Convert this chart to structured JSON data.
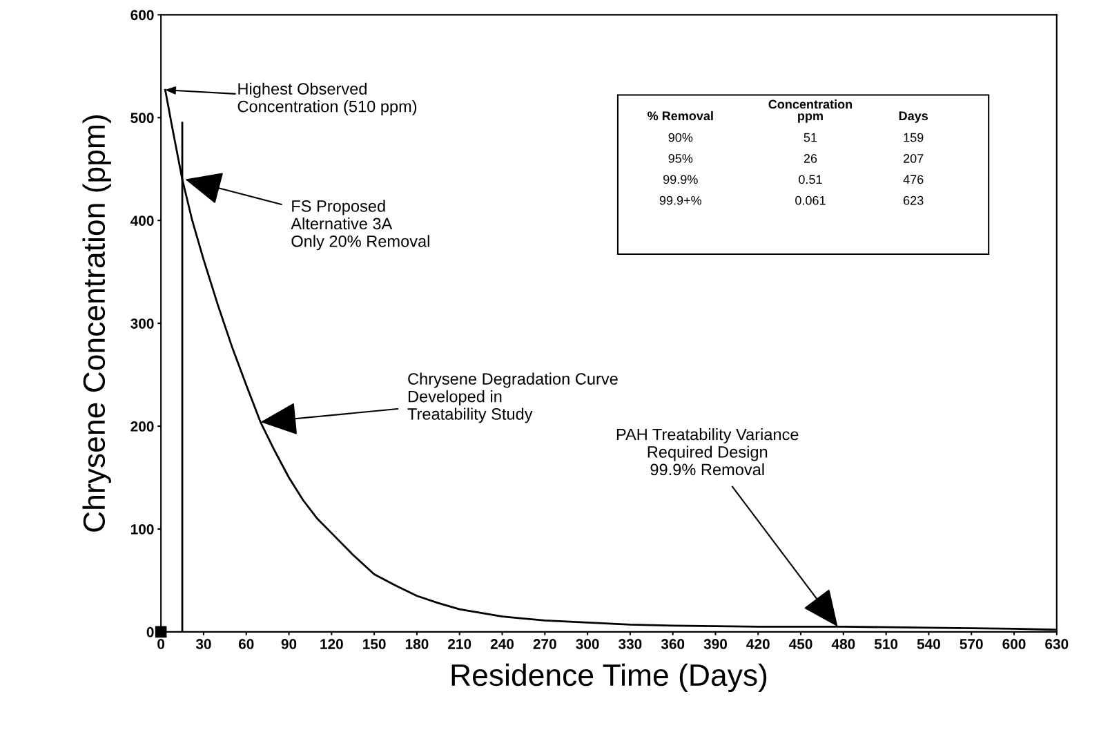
{
  "chart_data": {
    "type": "line",
    "xlabel": "Residence Time (Days)",
    "ylabel": "Chrysene Concentration (ppm)",
    "xlim": [
      0,
      630
    ],
    "xticks": [
      0,
      30,
      60,
      90,
      120,
      150,
      180,
      210,
      240,
      270,
      300,
      330,
      360,
      390,
      420,
      450,
      480,
      510,
      540,
      570,
      600,
      630
    ],
    "ylim": [
      0,
      600
    ],
    "yticks": [
      0,
      100,
      200,
      300,
      400,
      500,
      600
    ],
    "grid": false,
    "series": [
      {
        "color": "#000000",
        "x": [
          3,
          8,
          15,
          22,
          30,
          40,
          50,
          60,
          70,
          80,
          90,
          100,
          110,
          120,
          135,
          150,
          165,
          180,
          195,
          210,
          240,
          270,
          300,
          330,
          360,
          420,
          480,
          540,
          600,
          630
        ],
        "values": [
          527,
          490,
          440,
          400,
          362,
          318,
          277,
          240,
          204,
          176,
          150,
          128,
          110,
          96,
          75,
          56,
          45,
          35,
          28,
          22,
          15,
          11,
          9,
          7,
          6,
          5,
          5,
          4,
          3,
          2
        ]
      },
      {
        "type": "line",
        "color": "#000000",
        "x": [
          15,
          15
        ],
        "values": [
          0,
          495
        ]
      },
      {
        "type": "scatter",
        "color": "#000000",
        "marker": "square",
        "x": [
          0
        ],
        "values": [
          0
        ]
      }
    ],
    "annotations": [
      "Highest Observed\nConcentration (510 ppm)",
      {
        "text": "FS Proposed\nAlternative 3A\nOnly 20% Removal",
        "x": 17,
        "y": 440
      },
      {
        "text": "Chrysene Degradation Curve\nDeveloped in\nTreatability Study",
        "x": 70,
        "y": 204
      },
      {
        "text": "PAH Treatability Variance\nRequired Design\n99.9% Removal",
        "x": 476,
        "y": 5
      },
      "% Removal",
      "Concentration\nppm",
      "Days",
      "90%",
      "51",
      "159",
      "95%",
      "26",
      "207",
      "99.9%",
      "0.51",
      "476",
      "99.9+%",
      "0.061",
      "623"
    ]
  }
}
